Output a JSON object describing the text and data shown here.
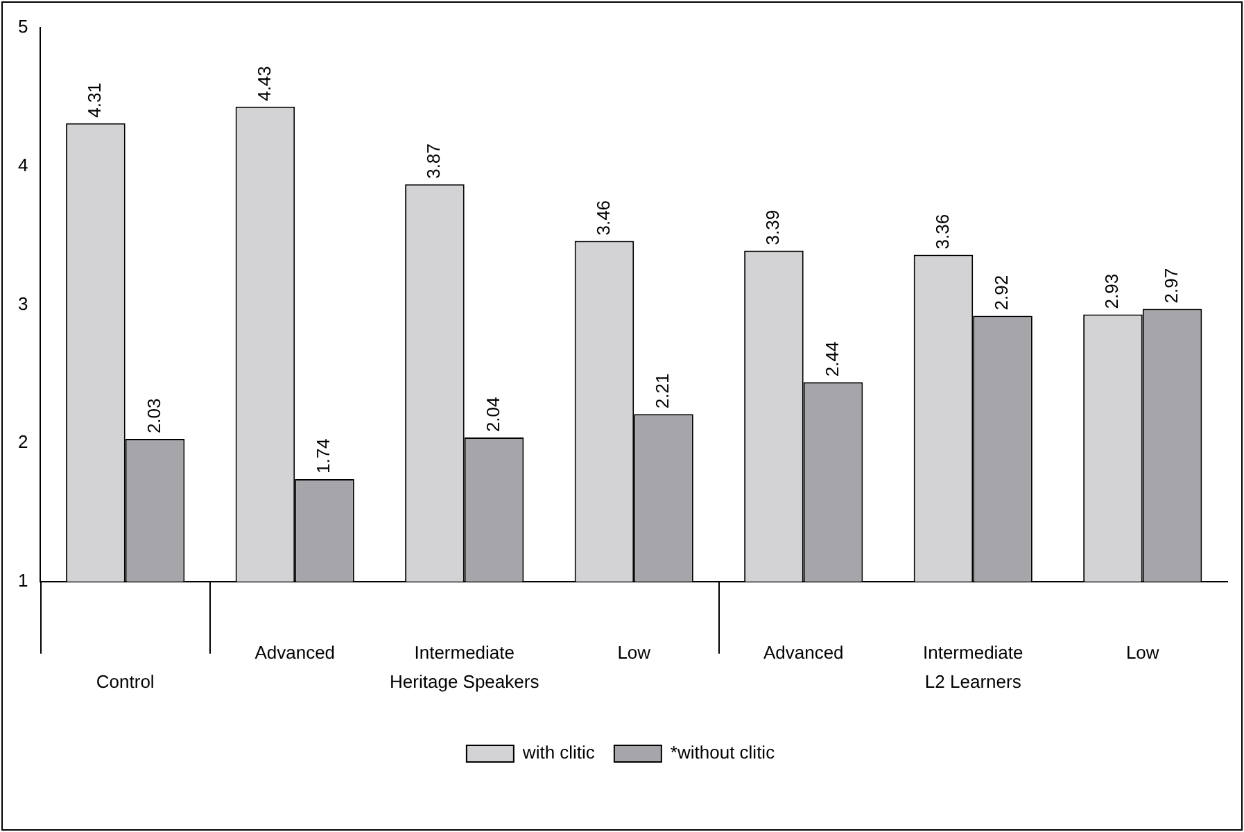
{
  "chart_data": {
    "type": "bar",
    "categories": [
      null,
      "Advanced",
      "Intermediate",
      "Low",
      "Advanced",
      "Intermediate",
      "Low"
    ],
    "series": [
      {
        "name": "with clitic",
        "color": "#d3d3d5",
        "values": [
          4.31,
          4.43,
          3.87,
          3.46,
          3.39,
          3.36,
          2.93
        ]
      },
      {
        "name": "*without clitic",
        "color": "#a6a6aa",
        "values": [
          2.03,
          1.74,
          2.04,
          2.21,
          2.44,
          2.92,
          2.97
        ]
      }
    ],
    "ylim": [
      1,
      5
    ],
    "yticks": [
      1,
      2,
      3,
      4,
      5
    ],
    "grid": false,
    "legend": "bottom",
    "data_labels": true,
    "annotations": [
      "Control",
      "Heritage Speakers",
      "L2 Learners"
    ]
  }
}
